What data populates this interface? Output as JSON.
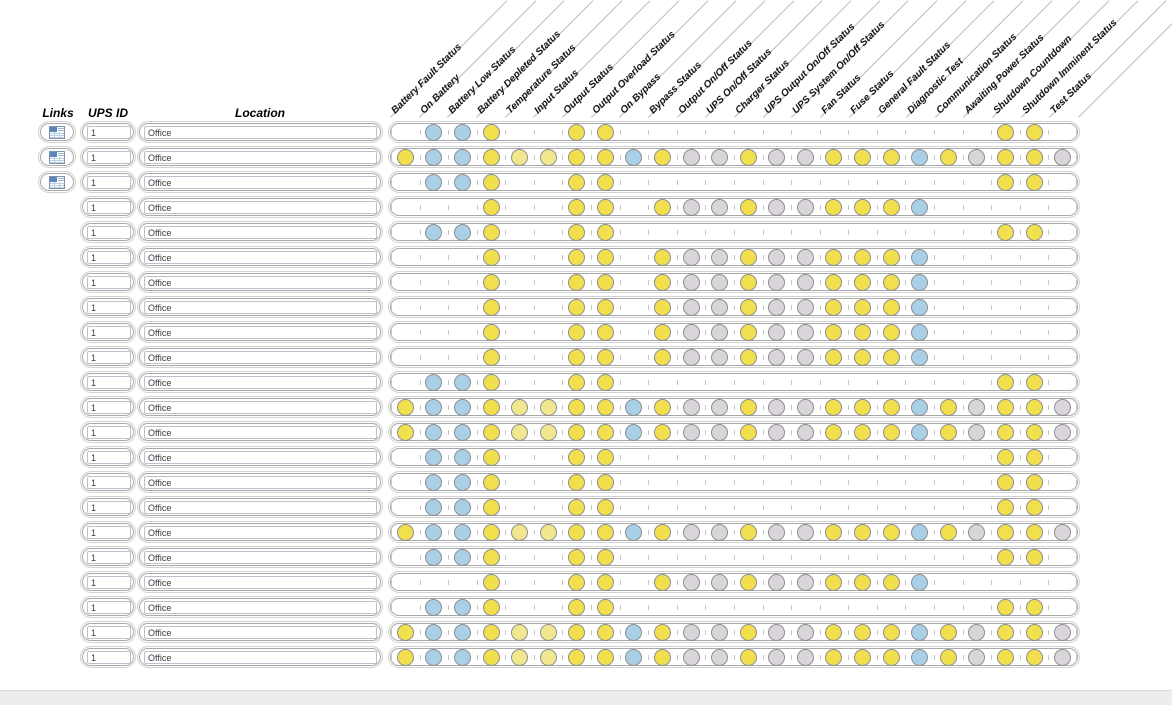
{
  "left_headers": {
    "links": "Links",
    "ups_id": "UPS ID",
    "location": "Location"
  },
  "columns": [
    "Battery Fault Status",
    "On Battery",
    "Battery Low Status",
    "Battery Depleted Status",
    "Temperature Status",
    "Input Status",
    "Output Status",
    "Output Overload Status",
    "On Bypass",
    "Bypass Status",
    "Output On/Off Status",
    "UPS On/Off Status",
    "Charger Status",
    "UPS Output On/Off Status",
    "UPS System On/Off Status",
    "Fan Status",
    "Fuse Status",
    "General Fault Status",
    "Diagnostic Test",
    "Communication Status",
    "Awaiting Power Status",
    "Shutdown Countdown",
    "Shutdown Imminent Status",
    "Test Status"
  ],
  "colors": {
    "yellow": "#F2DF4E",
    "pale_yellow": "#F1E78E",
    "blue": "#AAD0E8",
    "gray": "#D9D5DA",
    "dot_border": "#8F8F8F"
  },
  "patterns": {
    "A": [
      "",
      "B",
      "B",
      "Y",
      "",
      "",
      "Y",
      "Y",
      "",
      "",
      "",
      "",
      "",
      "",
      "",
      "",
      "",
      "",
      "",
      "",
      "",
      "Y",
      "Y",
      ""
    ],
    "B": [
      "Y",
      "B",
      "B",
      "Y",
      "y",
      "y",
      "Y",
      "Y",
      "B",
      "Y",
      "G",
      "G",
      "Y",
      "G",
      "G",
      "Y",
      "Y",
      "Y",
      "B",
      "Y",
      "G",
      "Y",
      "Y",
      "G"
    ],
    "C": [
      "",
      "",
      "",
      "Y",
      "",
      "",
      "Y",
      "Y",
      "",
      "Y",
      "G",
      "G",
      "Y",
      "G",
      "G",
      "Y",
      "Y",
      "Y",
      "B",
      "",
      "",
      "",
      "",
      ""
    ]
  },
  "rows": [
    {
      "links": true,
      "ups_id": "1",
      "location": "Office",
      "pattern": "A"
    },
    {
      "links": true,
      "ups_id": "1",
      "location": "Office",
      "pattern": "B"
    },
    {
      "links": true,
      "ups_id": "1",
      "location": "Office",
      "pattern": "A"
    },
    {
      "links": false,
      "ups_id": "1",
      "location": "Office",
      "pattern": "C"
    },
    {
      "links": false,
      "ups_id": "1",
      "location": "Office",
      "pattern": "A"
    },
    {
      "links": false,
      "ups_id": "1",
      "location": "Office",
      "pattern": "C"
    },
    {
      "links": false,
      "ups_id": "1",
      "location": "Office",
      "pattern": "C"
    },
    {
      "links": false,
      "ups_id": "1",
      "location": "Office",
      "pattern": "C"
    },
    {
      "links": false,
      "ups_id": "1",
      "location": "Office",
      "pattern": "C"
    },
    {
      "links": false,
      "ups_id": "1",
      "location": "Office",
      "pattern": "C"
    },
    {
      "links": false,
      "ups_id": "1",
      "location": "Office",
      "pattern": "A"
    },
    {
      "links": false,
      "ups_id": "1",
      "location": "Office",
      "pattern": "B"
    },
    {
      "links": false,
      "ups_id": "1",
      "location": "Office",
      "pattern": "B"
    },
    {
      "links": false,
      "ups_id": "1",
      "location": "Office",
      "pattern": "A"
    },
    {
      "links": false,
      "ups_id": "1",
      "location": "Office",
      "pattern": "A"
    },
    {
      "links": false,
      "ups_id": "1",
      "location": "Office",
      "pattern": "A"
    },
    {
      "links": false,
      "ups_id": "1",
      "location": "Office",
      "pattern": "B"
    },
    {
      "links": false,
      "ups_id": "1",
      "location": "Office",
      "pattern": "A"
    },
    {
      "links": false,
      "ups_id": "1",
      "location": "Office",
      "pattern": "C"
    },
    {
      "links": false,
      "ups_id": "1",
      "location": "Office",
      "pattern": "A"
    },
    {
      "links": false,
      "ups_id": "1",
      "location": "Office",
      "pattern": "B"
    },
    {
      "links": false,
      "ups_id": "1",
      "location": "Office",
      "pattern": "B"
    }
  ]
}
